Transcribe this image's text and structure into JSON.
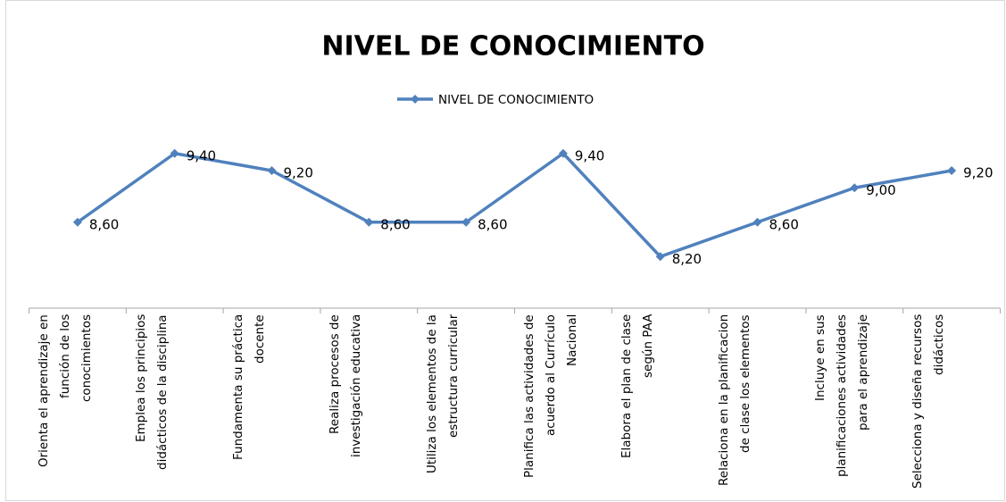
{
  "chart_data": {
    "type": "line",
    "title": "NIVEL DE CONOCIMIENTO",
    "categories": [
      "Orienta el aprendizaje en función de los conocimientos",
      "Emplea los principios didácticos de la disciplina",
      "Fundamenta su práctica docente",
      "Realiza procesos de investigación educativa",
      "Utiliza los elementos de la estructura curricular",
      "Planifica las actividades de acuerdo al Currículo Nacional",
      "Elabora el plan de clase según PAA",
      "Relaciona en la planificacion de clase los elementos",
      "Incluye en sus planificaciones actividades para el aprendizaje",
      "Selecciona y diseña recursos didácticos"
    ],
    "series": [
      {
        "name": "NIVEL DE CONOCIMIENTO",
        "color": "#4f81bd",
        "values": [
          8.6,
          9.4,
          9.2,
          8.6,
          8.6,
          9.4,
          8.2,
          8.6,
          9.0,
          9.2
        ],
        "value_labels": [
          "8,60",
          "9,40",
          "9,20",
          "8,60",
          "8,60",
          "9,40",
          "8,20",
          "8,60",
          "9,00",
          "9,20"
        ]
      }
    ],
    "ylim": [
      7.6,
      10.0
    ],
    "legend": "top"
  }
}
